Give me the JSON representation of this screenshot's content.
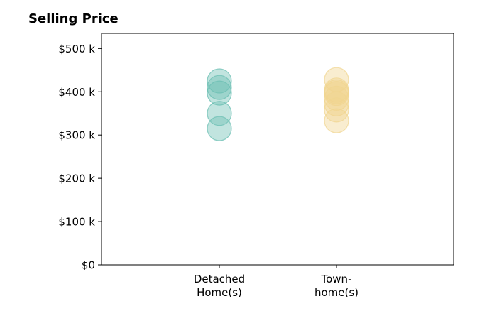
{
  "chart_data": {
    "type": "scatter",
    "title": "Selling Price",
    "xlabel": "",
    "ylabel": "",
    "categories": [
      [
        "Detached",
        "Home(s)"
      ],
      [
        "Town-",
        "home(s)"
      ]
    ],
    "ylim": [
      0,
      535000
    ],
    "yticks": [
      0,
      100000,
      200000,
      300000,
      400000,
      500000
    ],
    "ytick_labels": [
      "$0",
      "$100 k",
      "$200 k",
      "$300 k",
      "$400 k",
      "$500 k"
    ],
    "grid": false,
    "legend": "none",
    "series": [
      {
        "category_index": 0,
        "color": "#6bbfb3",
        "values": [
          425000,
          410000,
          397000,
          350000,
          315000
        ]
      },
      {
        "category_index": 1,
        "color": "#f0d590",
        "values": [
          428000,
          404000,
          400000,
          396000,
          385000,
          372000,
          358000,
          333000
        ]
      }
    ]
  }
}
